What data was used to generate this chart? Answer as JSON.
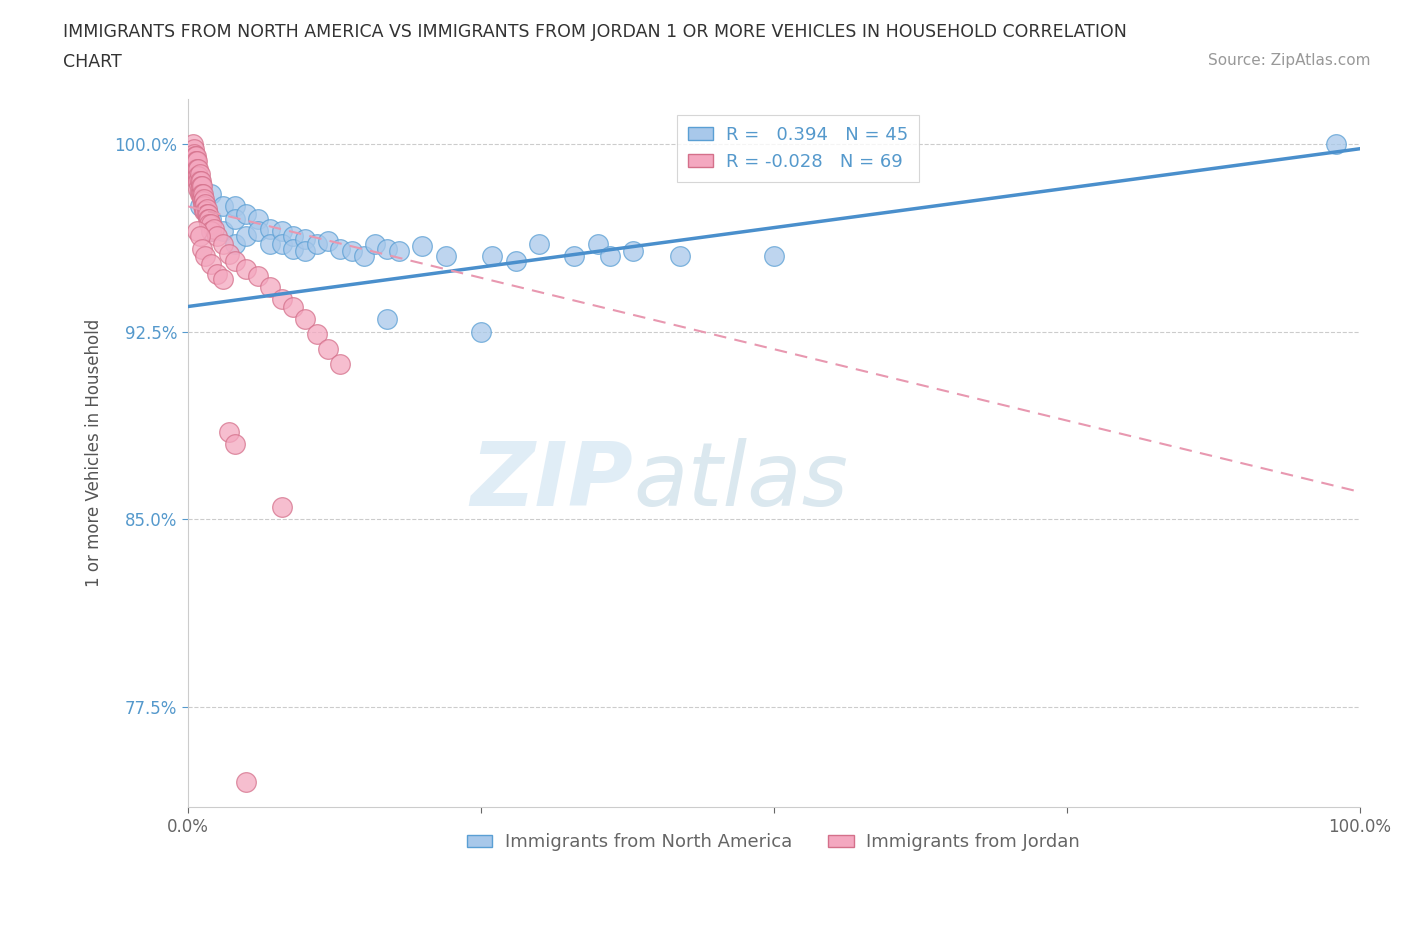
{
  "title_line1": "IMMIGRANTS FROM NORTH AMERICA VS IMMIGRANTS FROM JORDAN 1 OR MORE VEHICLES IN HOUSEHOLD CORRELATION",
  "title_line2": "CHART",
  "source_text": "Source: ZipAtlas.com",
  "ylabel": "1 or more Vehicles in Household",
  "xticklabels": [
    "0.0%",
    "100.0%"
  ],
  "yticklabels": [
    "77.5%",
    "85.0%",
    "92.5%",
    "100.0%"
  ],
  "xlim": [
    0.0,
    1.0
  ],
  "ylim": [
    0.735,
    1.018
  ],
  "legend_blue_R": "0.394",
  "legend_blue_N": "45",
  "legend_pink_R": "-0.028",
  "legend_pink_N": "69",
  "watermark_zip": "ZIP",
  "watermark_atlas": "atlas",
  "blue_color": "#a8c8ea",
  "pink_color": "#f4a8c0",
  "blue_edge_color": "#5a9fd4",
  "pink_edge_color": "#d4708a",
  "blue_line_color": "#4a8fcc",
  "pink_line_color": "#e898b0",
  "ytick_color": "#5599cc",
  "blue_scatter": [
    [
      0.005,
      0.99
    ],
    [
      0.01,
      0.985
    ],
    [
      0.01,
      0.975
    ],
    [
      0.02,
      0.98
    ],
    [
      0.02,
      0.97
    ],
    [
      0.02,
      0.965
    ],
    [
      0.03,
      0.975
    ],
    [
      0.03,
      0.965
    ],
    [
      0.04,
      0.975
    ],
    [
      0.04,
      0.97
    ],
    [
      0.04,
      0.96
    ],
    [
      0.05,
      0.972
    ],
    [
      0.05,
      0.963
    ],
    [
      0.06,
      0.97
    ],
    [
      0.06,
      0.965
    ],
    [
      0.07,
      0.966
    ],
    [
      0.07,
      0.96
    ],
    [
      0.08,
      0.965
    ],
    [
      0.08,
      0.96
    ],
    [
      0.09,
      0.963
    ],
    [
      0.09,
      0.958
    ],
    [
      0.1,
      0.962
    ],
    [
      0.1,
      0.957
    ],
    [
      0.11,
      0.96
    ],
    [
      0.12,
      0.961
    ],
    [
      0.13,
      0.958
    ],
    [
      0.14,
      0.957
    ],
    [
      0.15,
      0.955
    ],
    [
      0.16,
      0.96
    ],
    [
      0.17,
      0.958
    ],
    [
      0.18,
      0.957
    ],
    [
      0.2,
      0.959
    ],
    [
      0.22,
      0.955
    ],
    [
      0.26,
      0.955
    ],
    [
      0.28,
      0.953
    ],
    [
      0.3,
      0.96
    ],
    [
      0.33,
      0.955
    ],
    [
      0.35,
      0.96
    ],
    [
      0.36,
      0.955
    ],
    [
      0.38,
      0.957
    ],
    [
      0.42,
      0.955
    ],
    [
      0.5,
      0.955
    ],
    [
      0.17,
      0.93
    ],
    [
      0.25,
      0.925
    ],
    [
      0.98,
      1.0
    ]
  ],
  "pink_scatter": [
    [
      0.004,
      1.0
    ],
    [
      0.005,
      0.998
    ],
    [
      0.005,
      0.996
    ],
    [
      0.006,
      0.995
    ],
    [
      0.006,
      0.993
    ],
    [
      0.006,
      0.99
    ],
    [
      0.007,
      0.995
    ],
    [
      0.007,
      0.993
    ],
    [
      0.007,
      0.99
    ],
    [
      0.007,
      0.987
    ],
    [
      0.008,
      0.993
    ],
    [
      0.008,
      0.99
    ],
    [
      0.008,
      0.987
    ],
    [
      0.008,
      0.985
    ],
    [
      0.009,
      0.99
    ],
    [
      0.009,
      0.987
    ],
    [
      0.009,
      0.985
    ],
    [
      0.009,
      0.982
    ],
    [
      0.01,
      0.988
    ],
    [
      0.01,
      0.985
    ],
    [
      0.01,
      0.982
    ],
    [
      0.01,
      0.98
    ],
    [
      0.011,
      0.985
    ],
    [
      0.011,
      0.983
    ],
    [
      0.011,
      0.98
    ],
    [
      0.012,
      0.983
    ],
    [
      0.012,
      0.98
    ],
    [
      0.012,
      0.978
    ],
    [
      0.013,
      0.98
    ],
    [
      0.013,
      0.977
    ],
    [
      0.013,
      0.975
    ],
    [
      0.014,
      0.978
    ],
    [
      0.014,
      0.975
    ],
    [
      0.014,
      0.973
    ],
    [
      0.015,
      0.976
    ],
    [
      0.015,
      0.973
    ],
    [
      0.016,
      0.974
    ],
    [
      0.016,
      0.972
    ],
    [
      0.017,
      0.972
    ],
    [
      0.017,
      0.97
    ],
    [
      0.018,
      0.97
    ],
    [
      0.018,
      0.968
    ],
    [
      0.02,
      0.968
    ],
    [
      0.02,
      0.965
    ],
    [
      0.022,
      0.966
    ],
    [
      0.025,
      0.963
    ],
    [
      0.03,
      0.96
    ],
    [
      0.035,
      0.956
    ],
    [
      0.04,
      0.953
    ],
    [
      0.05,
      0.95
    ],
    [
      0.06,
      0.947
    ],
    [
      0.07,
      0.943
    ],
    [
      0.08,
      0.938
    ],
    [
      0.09,
      0.935
    ],
    [
      0.1,
      0.93
    ],
    [
      0.11,
      0.924
    ],
    [
      0.12,
      0.918
    ],
    [
      0.13,
      0.912
    ],
    [
      0.008,
      0.965
    ],
    [
      0.01,
      0.963
    ],
    [
      0.012,
      0.958
    ],
    [
      0.015,
      0.955
    ],
    [
      0.02,
      0.952
    ],
    [
      0.025,
      0.948
    ],
    [
      0.03,
      0.946
    ],
    [
      0.035,
      0.885
    ],
    [
      0.04,
      0.88
    ],
    [
      0.08,
      0.855
    ],
    [
      0.05,
      0.745
    ]
  ],
  "blue_regline": [
    [
      0.0,
      0.935
    ],
    [
      1.0,
      0.998
    ]
  ],
  "pink_regline": [
    [
      0.0,
      0.975
    ],
    [
      1.0,
      0.861
    ]
  ]
}
